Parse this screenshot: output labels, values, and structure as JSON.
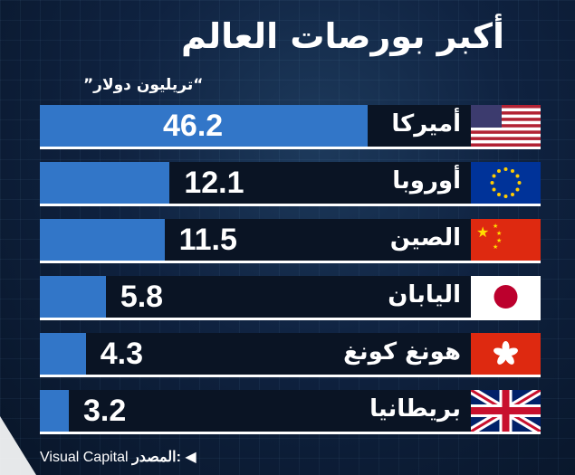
{
  "chart_data": {
    "type": "bar",
    "title": "أكبر بورصات العالم",
    "ylabel": "تريليون دولار",
    "categories": [
      "أميركا",
      "أوروبا",
      "الصين",
      "اليابان",
      "هونغ كونغ",
      "بريطانيا"
    ],
    "values": [
      46.2,
      12.1,
      11.5,
      5.8,
      4.3,
      3.2
    ],
    "flags": [
      "us-flag-icon",
      "eu-flag-icon",
      "china-flag-icon",
      "japan-flag-icon",
      "hong-kong-flag-icon",
      "uk-flag-icon"
    ],
    "bar_color": "#3276c8"
  },
  "header": {
    "title": "أكبر بورصات العالم",
    "unit": "“تريليون دولار”"
  },
  "footer": {
    "source_label": "المصدر:",
    "source": "Visual Capital"
  }
}
